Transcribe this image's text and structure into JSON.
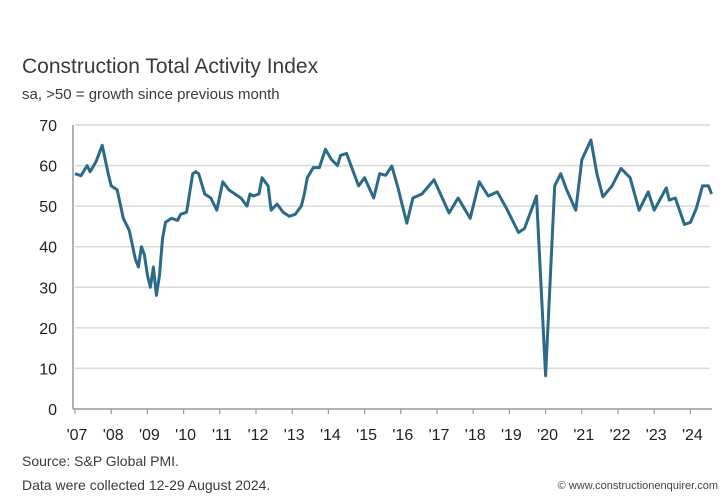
{
  "chart_data": {
    "type": "line",
    "title": "Construction Total Activity Index",
    "subtitle": "sa, >50 = growth since previous month",
    "xlabel": "",
    "ylabel": "",
    "ylim": [
      0,
      70
    ],
    "yticks": [
      0,
      10,
      20,
      30,
      40,
      50,
      60,
      70
    ],
    "xtick_labels": [
      "'07",
      "'08",
      "'09",
      "'10",
      "'11",
      "'12",
      "'13",
      "'14",
      "'15",
      "'16",
      "'17",
      "'18",
      "'19",
      "'20",
      "'21",
      "'22",
      "'23",
      "'24"
    ],
    "grid": true,
    "line_color": "#2b6a88",
    "x": [
      "2007-01",
      "2007-03",
      "2007-05",
      "2007-06",
      "2007-08",
      "2007-10",
      "2007-12",
      "2008-01",
      "2008-03",
      "2008-05",
      "2008-07",
      "2008-09",
      "2008-10",
      "2008-11",
      "2008-12",
      "2009-01",
      "2009-02",
      "2009-03",
      "2009-04",
      "2009-05",
      "2009-06",
      "2009-07",
      "2009-09",
      "2009-11",
      "2009-12",
      "2010-02",
      "2010-04",
      "2010-05",
      "2010-06",
      "2010-08",
      "2010-10",
      "2010-12",
      "2011-02",
      "2011-04",
      "2011-06",
      "2011-08",
      "2011-10",
      "2011-11",
      "2011-12",
      "2012-02",
      "2012-03",
      "2012-05",
      "2012-06",
      "2012-08",
      "2012-10",
      "2012-12",
      "2013-02",
      "2013-04",
      "2013-05",
      "2013-06",
      "2013-08",
      "2013-10",
      "2013-12",
      "2014-02",
      "2014-04",
      "2014-05",
      "2014-07",
      "2014-09",
      "2014-11",
      "2015-01",
      "2015-04",
      "2015-06",
      "2015-08",
      "2015-10",
      "2015-12",
      "2016-03",
      "2016-05",
      "2016-08",
      "2016-12",
      "2017-05",
      "2017-08",
      "2017-12",
      "2018-03",
      "2018-06",
      "2018-09",
      "2018-12",
      "2019-04",
      "2019-06",
      "2019-10",
      "2020-01",
      "2020-04",
      "2020-06",
      "2020-08",
      "2020-11",
      "2021-01",
      "2021-04",
      "2021-06",
      "2021-08",
      "2021-11",
      "2022-02",
      "2022-05",
      "2022-08",
      "2022-11",
      "2023-01",
      "2023-05",
      "2023-06",
      "2023-08",
      "2023-11",
      "2024-01",
      "2024-03",
      "2024-05",
      "2024-07",
      "2024-08"
    ],
    "values": [
      58,
      57.5,
      60,
      58.5,
      61,
      65,
      58,
      55,
      54,
      47,
      44,
      37,
      35,
      40,
      38,
      33,
      30,
      35,
      28,
      33,
      42,
      46,
      47,
      46.5,
      48,
      48.5,
      58,
      58.5,
      58,
      53,
      52,
      49,
      56,
      54,
      53,
      52,
      50,
      53,
      52.5,
      53,
      57,
      55,
      49,
      50.5,
      48.5,
      47.5,
      48,
      50,
      53,
      57,
      59.5,
      59.5,
      64,
      61.5,
      60,
      62.5,
      63,
      59,
      55,
      57,
      52,
      58,
      57.6,
      59.9,
      54.7,
      45.8,
      52,
      53,
      56.5,
      48.3,
      52,
      47,
      56,
      52.5,
      53.5,
      49.5,
      43.5,
      44.5,
      52.5,
      8.2,
      55,
      58,
      54,
      49,
      61.4,
      66.3,
      58,
      52.3,
      55,
      59.3,
      57,
      49,
      53.5,
      49,
      54.5,
      51.5,
      52,
      45.5,
      46,
      49.5,
      55,
      55,
      53
    ]
  },
  "footer": {
    "source": "Source: S&P Global PMI.",
    "note": "Data were collected 12-29 August 2024.",
    "credit": "© www.constructionenquirer.com"
  }
}
